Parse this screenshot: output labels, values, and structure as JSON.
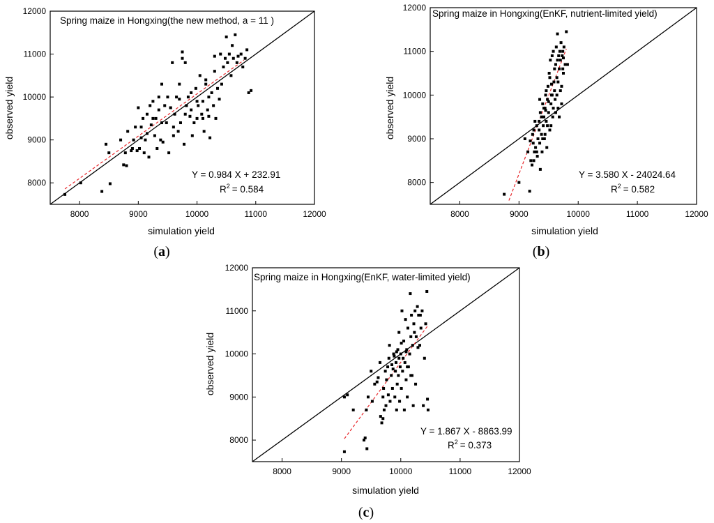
{
  "chart_data": [
    {
      "type": "scatter",
      "id": "a",
      "panel_label_open": "(",
      "panel_label_letter": "a",
      "panel_label_close": ")",
      "title": "Spring maize in Hongxing(the new method, a = 11  )",
      "xlabel": "simulation yield",
      "ylabel": "observed yield",
      "xlim": [
        7500,
        12000
      ],
      "ylim": [
        7500,
        12000
      ],
      "xticks": [
        8000,
        9000,
        10000,
        11000,
        12000
      ],
      "yticks": [
        8000,
        9000,
        10000,
        11000,
        12000
      ],
      "equation": "Y = 0.984 X + 232.91",
      "r2_label": "R",
      "r2_sup": "2",
      "r2_value": "=  0.584",
      "fit": {
        "slope": 0.984,
        "intercept": 232.91,
        "x_range": [
          7750,
          10800
        ]
      },
      "points": [
        [
          7750,
          7730
        ],
        [
          8020,
          8000
        ],
        [
          8380,
          7800
        ],
        [
          8450,
          8900
        ],
        [
          8500,
          8700
        ],
        [
          8520,
          7980
        ],
        [
          8700,
          9000
        ],
        [
          8750,
          8420
        ],
        [
          8780,
          8700
        ],
        [
          8800,
          8400
        ],
        [
          8820,
          9200
        ],
        [
          8880,
          8750
        ],
        [
          8900,
          8800
        ],
        [
          8920,
          9000
        ],
        [
          8950,
          9300
        ],
        [
          8980,
          8750
        ],
        [
          9000,
          9750
        ],
        [
          9020,
          8800
        ],
        [
          9050,
          9300
        ],
        [
          9080,
          9500
        ],
        [
          9100,
          8700
        ],
        [
          9120,
          9000
        ],
        [
          9150,
          9600
        ],
        [
          9180,
          8600
        ],
        [
          9200,
          9800
        ],
        [
          9220,
          9350
        ],
        [
          9250,
          9900
        ],
        [
          9280,
          9100
        ],
        [
          9300,
          9500
        ],
        [
          9320,
          8800
        ],
        [
          9350,
          9700
        ],
        [
          9380,
          9000
        ],
        [
          9400,
          10300
        ],
        [
          9420,
          8950
        ],
        [
          9450,
          9800
        ],
        [
          9480,
          9400
        ],
        [
          9500,
          10000
        ],
        [
          9520,
          8700
        ],
        [
          9550,
          9750
        ],
        [
          9580,
          10800
        ],
        [
          9600,
          9100
        ],
        [
          9620,
          9600
        ],
        [
          9650,
          10000
        ],
        [
          9680,
          9200
        ],
        [
          9700,
          10300
        ],
        [
          9720,
          9400
        ],
        [
          9750,
          10900
        ],
        [
          9780,
          8900
        ],
        [
          9800,
          9600
        ],
        [
          9820,
          9800
        ],
        [
          9850,
          10000
        ],
        [
          9880,
          9550
        ],
        [
          9900,
          10100
        ],
        [
          9920,
          9100
        ],
        [
          9950,
          9400
        ],
        [
          9980,
          10200
        ],
        [
          10000,
          9500
        ],
        [
          10020,
          9800
        ],
        [
          10050,
          10500
        ],
        [
          10080,
          9600
        ],
        [
          10100,
          9900
        ],
        [
          10120,
          9200
        ],
        [
          10150,
          10300
        ],
        [
          10180,
          9700
        ],
        [
          10200,
          10000
        ],
        [
          10220,
          9050
        ],
        [
          10250,
          10100
        ],
        [
          10280,
          9800
        ],
        [
          10300,
          10600
        ],
        [
          10320,
          9500
        ],
        [
          10350,
          10200
        ],
        [
          10380,
          9950
        ],
        [
          10400,
          11000
        ],
        [
          10420,
          10300
        ],
        [
          10450,
          10700
        ],
        [
          10480,
          10900
        ],
        [
          10500,
          11400
        ],
        [
          10520,
          10800
        ],
        [
          10550,
          11000
        ],
        [
          10580,
          10500
        ],
        [
          10600,
          11200
        ],
        [
          10620,
          10900
        ],
        [
          10650,
          11450
        ],
        [
          10680,
          10800
        ],
        [
          10700,
          10950
        ],
        [
          10750,
          11000
        ],
        [
          10780,
          10700
        ],
        [
          10820,
          10900
        ],
        [
          10850,
          11100
        ],
        [
          10880,
          10100
        ],
        [
          10920,
          10150
        ],
        [
          9400,
          9400
        ],
        [
          9600,
          9300
        ],
        [
          9700,
          9950
        ],
        [
          9900,
          9700
        ],
        [
          10000,
          9900
        ],
        [
          10100,
          9500
        ],
        [
          10200,
          9550
        ],
        [
          9250,
          9500
        ],
        [
          9150,
          9150
        ],
        [
          9800,
          10800
        ],
        [
          9750,
          11050
        ],
        [
          10300,
          10950
        ],
        [
          10150,
          10400
        ],
        [
          9550,
          9750
        ],
        [
          9350,
          10000
        ],
        [
          9050,
          9050
        ]
      ]
    },
    {
      "type": "scatter",
      "id": "b",
      "panel_label_open": "(",
      "panel_label_letter": "b",
      "panel_label_close": ")",
      "title": "Spring maize in Hongxing(EnKF, nutrient-limited yield)",
      "xlabel": "simulation yield",
      "ylabel": "observed yield",
      "xlim": [
        7500,
        12000
      ],
      "ylim": [
        7500,
        12000
      ],
      "xticks": [
        8000,
        9000,
        10000,
        11000,
        12000
      ],
      "yticks": [
        8000,
        9000,
        10000,
        11000,
        12000
      ],
      "equation": "Y = 3.580 X - 24024.64",
      "r2_label": "R",
      "r2_sup": "2",
      "r2_value": "=  0.582",
      "fit": {
        "slope": 3.58,
        "intercept": -24024.64,
        "x_range": [
          8830,
          9800
        ]
      },
      "points": [
        [
          8750,
          7730
        ],
        [
          9000,
          8000
        ],
        [
          9100,
          9000
        ],
        [
          9150,
          8700
        ],
        [
          9180,
          7800
        ],
        [
          9200,
          8500
        ],
        [
          9220,
          8400
        ],
        [
          9240,
          8900
        ],
        [
          9250,
          9200
        ],
        [
          9260,
          8700
        ],
        [
          9280,
          8800
        ],
        [
          9300,
          9300
        ],
        [
          9310,
          8600
        ],
        [
          9320,
          9000
        ],
        [
          9340,
          9400
        ],
        [
          9350,
          8900
        ],
        [
          9360,
          9600
        ],
        [
          9380,
          9100
        ],
        [
          9390,
          8700
        ],
        [
          9400,
          9800
        ],
        [
          9410,
          9300
        ],
        [
          9420,
          9500
        ],
        [
          9430,
          9000
        ],
        [
          9440,
          9700
        ],
        [
          9450,
          10000
        ],
        [
          9460,
          9400
        ],
        [
          9470,
          8800
        ],
        [
          9480,
          9900
        ],
        [
          9490,
          10200
        ],
        [
          9500,
          9600
        ],
        [
          9510,
          10500
        ],
        [
          9520,
          9200
        ],
        [
          9530,
          10800
        ],
        [
          9540,
          9800
        ],
        [
          9550,
          10000
        ],
        [
          9560,
          10900
        ],
        [
          9570,
          9500
        ],
        [
          9580,
          11000
        ],
        [
          9590,
          10300
        ],
        [
          9600,
          10100
        ],
        [
          9610,
          9900
        ],
        [
          9620,
          10700
        ],
        [
          9630,
          11100
        ],
        [
          9640,
          10400
        ],
        [
          9650,
          11400
        ],
        [
          9660,
          9700
        ],
        [
          9670,
          10900
        ],
        [
          9680,
          10600
        ],
        [
          9690,
          11000
        ],
        [
          9700,
          10800
        ],
        [
          9710,
          11200
        ],
        [
          9720,
          10200
        ],
        [
          9730,
          10900
        ],
        [
          9740,
          11000
        ],
        [
          9750,
          10500
        ],
        [
          9760,
          11100
        ],
        [
          9780,
          10700
        ],
        [
          9800,
          11450
        ],
        [
          9820,
          10700
        ],
        [
          9340,
          9200
        ],
        [
          9360,
          8300
        ],
        [
          9380,
          9500
        ],
        [
          9400,
          9000
        ],
        [
          9420,
          9700
        ],
        [
          9440,
          9100
        ],
        [
          9460,
          10100
        ],
        [
          9480,
          9300
        ],
        [
          9500,
          9850
        ],
        [
          9520,
          10400
        ],
        [
          9540,
          9300
        ],
        [
          9560,
          10000
        ],
        [
          9580,
          9700
        ],
        [
          9600,
          10600
        ],
        [
          9620,
          9600
        ],
        [
          9640,
          10000
        ],
        [
          9660,
          10300
        ],
        [
          9680,
          9500
        ],
        [
          9700,
          10100
        ],
        [
          9720,
          9800
        ],
        [
          9740,
          10600
        ],
        [
          9300,
          8700
        ],
        [
          9270,
          9400
        ],
        [
          9230,
          9100
        ],
        [
          9190,
          8950
        ],
        [
          9450,
          9650
        ],
        [
          9550,
          10250
        ],
        [
          9650,
          10800
        ],
        [
          9750,
          10850
        ],
        [
          9250,
          8500
        ],
        [
          9350,
          9900
        ]
      ]
    },
    {
      "type": "scatter",
      "id": "c",
      "panel_label_open": "(",
      "panel_label_letter": "c",
      "panel_label_close": ")",
      "title": "Spring maize in Hongxing(EnKF, water-limited yield)",
      "xlabel": "simulation yield",
      "ylabel": "observed yield",
      "xlim": [
        7500,
        12000
      ],
      "ylim": [
        7500,
        12000
      ],
      "xticks": [
        8000,
        9000,
        10000,
        11000,
        12000
      ],
      "yticks": [
        8000,
        9000,
        10000,
        11000,
        12000
      ],
      "equation": "Y = 1.867 X - 8863.99",
      "r2_label": "R",
      "r2_sup": "2",
      "r2_value": "=  0.373",
      "fit": {
        "slope": 1.867,
        "intercept": -8863.99,
        "x_range": [
          9050,
          10450
        ]
      },
      "points": [
        [
          9050,
          7730
        ],
        [
          9050,
          9000
        ],
        [
          9100,
          9050
        ],
        [
          9200,
          8700
        ],
        [
          9380,
          8000
        ],
        [
          9400,
          8050
        ],
        [
          9420,
          8700
        ],
        [
          9430,
          7800
        ],
        [
          9450,
          9000
        ],
        [
          9500,
          9600
        ],
        [
          9520,
          8900
        ],
        [
          9560,
          9300
        ],
        [
          9600,
          9350
        ],
        [
          9620,
          9450
        ],
        [
          9650,
          9800
        ],
        [
          9680,
          8400
        ],
        [
          9700,
          8500
        ],
        [
          9700,
          9000
        ],
        [
          9720,
          8700
        ],
        [
          9740,
          9600
        ],
        [
          9750,
          8800
        ],
        [
          9760,
          9400
        ],
        [
          9780,
          9700
        ],
        [
          9800,
          9900
        ],
        [
          9820,
          8900
        ],
        [
          9840,
          9500
        ],
        [
          9850,
          9750
        ],
        [
          9860,
          9200
        ],
        [
          9880,
          10000
        ],
        [
          9900,
          9000
        ],
        [
          9910,
          9600
        ],
        [
          9920,
          9800
        ],
        [
          9930,
          8700
        ],
        [
          9940,
          9300
        ],
        [
          9950,
          10100
        ],
        [
          9960,
          9500
        ],
        [
          9970,
          10500
        ],
        [
          9980,
          8900
        ],
        [
          9990,
          9700
        ],
        [
          10000,
          10000
        ],
        [
          10010,
          9200
        ],
        [
          10020,
          11000
        ],
        [
          10030,
          9600
        ],
        [
          10040,
          9900
        ],
        [
          10050,
          10300
        ],
        [
          10060,
          8700
        ],
        [
          10070,
          9800
        ],
        [
          10080,
          10800
        ],
        [
          10090,
          9400
        ],
        [
          10100,
          10100
        ],
        [
          10110,
          9000
        ],
        [
          10120,
          10600
        ],
        [
          10130,
          9700
        ],
        [
          10150,
          10000
        ],
        [
          10160,
          11400
        ],
        [
          10170,
          9500
        ],
        [
          10180,
          10900
        ],
        [
          10200,
          10200
        ],
        [
          10210,
          8800
        ],
        [
          10220,
          10700
        ],
        [
          10240,
          11000
        ],
        [
          10250,
          9300
        ],
        [
          10260,
          10400
        ],
        [
          10280,
          11100
        ],
        [
          10300,
          10900
        ],
        [
          10320,
          10200
        ],
        [
          10340,
          10600
        ],
        [
          10360,
          11000
        ],
        [
          10380,
          8800
        ],
        [
          10400,
          9900
        ],
        [
          10420,
          10700
        ],
        [
          10440,
          11450
        ],
        [
          10450,
          8950
        ],
        [
          10460,
          8700
        ],
        [
          9890,
          9950
        ],
        [
          9930,
          10050
        ],
        [
          10010,
          10250
        ],
        [
          10090,
          10050
        ],
        [
          10170,
          10400
        ],
        [
          10230,
          10500
        ],
        [
          10290,
          10150
        ],
        [
          10330,
          10900
        ],
        [
          10190,
          9500
        ],
        [
          10110,
          9700
        ],
        [
          9970,
          9900
        ],
        [
          9870,
          9650
        ],
        [
          9810,
          10200
        ],
        [
          9790,
          9050
        ],
        [
          9710,
          9200
        ],
        [
          9660,
          8550
        ]
      ]
    }
  ]
}
